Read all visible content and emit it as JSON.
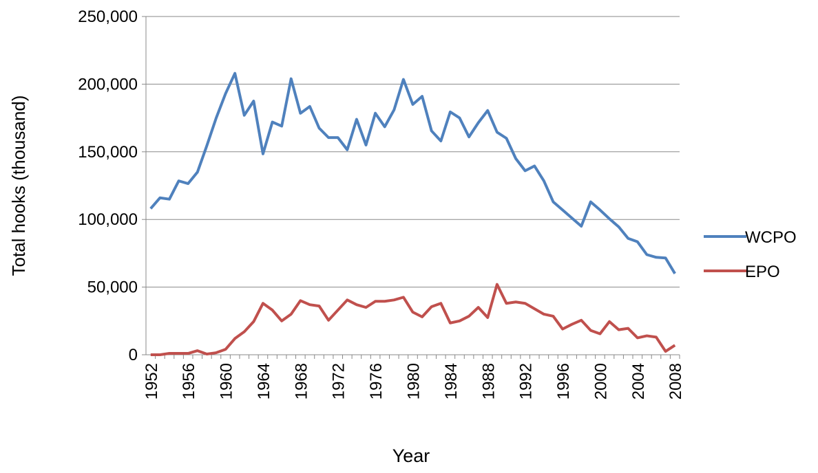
{
  "chart_data": {
    "type": "line",
    "x_label": "Year",
    "y_label": "Total hooks (thousand)",
    "x": [
      1952,
      1953,
      1954,
      1955,
      1956,
      1957,
      1958,
      1959,
      1960,
      1961,
      1962,
      1963,
      1964,
      1965,
      1966,
      1967,
      1968,
      1969,
      1970,
      1971,
      1972,
      1973,
      1974,
      1975,
      1976,
      1977,
      1978,
      1979,
      1980,
      1981,
      1982,
      1983,
      1984,
      1985,
      1986,
      1987,
      1988,
      1989,
      1990,
      1991,
      1992,
      1993,
      1994,
      1995,
      1996,
      1997,
      1998,
      1999,
      2000,
      2001,
      2002,
      2003,
      2004,
      2005,
      2006,
      2007,
      2008
    ],
    "series": [
      {
        "name": "WCPO",
        "color": "#4f81bd",
        "values": [
          108000,
          116000,
          115000,
          128500,
          126500,
          135000,
          154500,
          175000,
          193000,
          208000,
          177000,
          187500,
          148500,
          172000,
          169000,
          204000,
          178500,
          183500,
          167500,
          160500,
          160500,
          151500,
          174000,
          155000,
          178500,
          168500,
          181000,
          203500,
          185000,
          191000,
          165500,
          158000,
          179500,
          175000,
          161000,
          171500,
          180500,
          164500,
          160000,
          145000,
          136000,
          139500,
          128500,
          113000,
          107000,
          101000,
          95000,
          113000,
          107000,
          100500,
          94500,
          86000,
          83500,
          74000,
          72000,
          71500,
          60000
        ]
      },
      {
        "name": "EPO",
        "color": "#c0504d",
        "values": [
          0,
          0,
          1000,
          1000,
          1000,
          3000,
          500,
          1500,
          4000,
          12000,
          17000,
          24500,
          38000,
          33000,
          25000,
          30000,
          40000,
          37000,
          36000,
          25500,
          33000,
          40500,
          37000,
          35000,
          39500,
          39500,
          40500,
          42500,
          31500,
          28000,
          35500,
          38000,
          23500,
          25000,
          28500,
          35000,
          27500,
          52000,
          38000,
          39000,
          38000,
          34000,
          30000,
          28500,
          19000,
          22500,
          25500,
          18000,
          15500,
          24500,
          18500,
          19500,
          12500,
          14000,
          13000,
          2500,
          7000
        ]
      }
    ],
    "xlim": [
      1951.5,
      2008.5
    ],
    "xticks": [
      1952,
      1956,
      1960,
      1964,
      1968,
      1972,
      1976,
      1980,
      1984,
      1988,
      1992,
      1996,
      2000,
      2004,
      2008
    ],
    "ylim": [
      0,
      250000
    ],
    "yticks": [
      0,
      {
        "value": 50000,
        "label": "50,000"
      },
      {
        "value": 100000,
        "label": "100,000"
      },
      {
        "value": 150000,
        "label": "150,000"
      },
      {
        "value": 200000,
        "label": "200,000"
      },
      {
        "value": 250000,
        "label": "250,000"
      }
    ],
    "grid": true,
    "legend": "right"
  }
}
